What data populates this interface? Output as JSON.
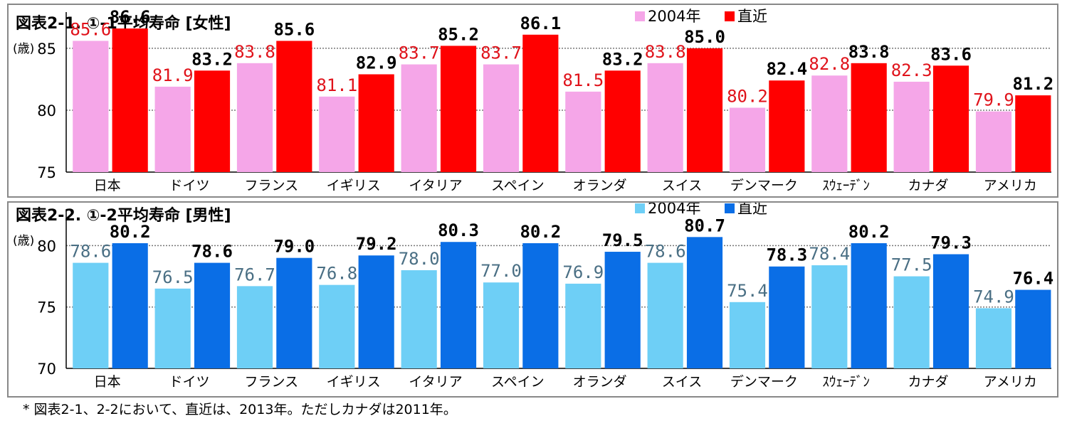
{
  "chart_data": [
    {
      "type": "bar",
      "title": "図表2-1. ①-1平均寿命 [女性]",
      "ylabel": "(歳)",
      "ylim": [
        75,
        88.5
      ],
      "yticks": [
        75,
        80,
        85
      ],
      "grid": true,
      "legend_position": "top-right",
      "categories": [
        "日本",
        "ドイツ",
        "フランス",
        "イギリス",
        "イタリア",
        "スペイン",
        "オランダ",
        "スイス",
        "デンマーク",
        "ｽｳｪｰﾃﾞﾝ",
        "カナダ",
        "アメリカ"
      ],
      "series": [
        {
          "name": "2004年",
          "color": "#f5a6e8",
          "label_color": "#e0121a",
          "values": [
            85.6,
            81.9,
            83.8,
            81.1,
            83.7,
            83.7,
            81.5,
            83.8,
            80.2,
            82.8,
            82.3,
            79.9
          ]
        },
        {
          "name": "直近",
          "color": "#ff0000",
          "label_color": "#000000",
          "values": [
            86.6,
            83.2,
            85.6,
            82.9,
            85.2,
            86.1,
            83.2,
            85.0,
            82.4,
            83.8,
            83.6,
            81.2
          ]
        }
      ]
    },
    {
      "type": "bar",
      "title": "図表2-2. ①-2平均寿命 [男性]",
      "ylabel": "(歳)",
      "ylim": [
        70,
        83.5
      ],
      "yticks": [
        70,
        75,
        80
      ],
      "grid": true,
      "legend_position": "top-right",
      "categories": [
        "日本",
        "ドイツ",
        "フランス",
        "イギリス",
        "イタリア",
        "スペイン",
        "オランダ",
        "スイス",
        "デンマーク",
        "ｽｳｪｰﾃﾞﾝ",
        "カナダ",
        "アメリカ"
      ],
      "series": [
        {
          "name": "2004年",
          "color": "#6ecff6",
          "label_color": "#4a6f84",
          "values": [
            78.6,
            76.5,
            76.7,
            76.8,
            78.0,
            77.0,
            76.9,
            78.6,
            75.4,
            78.4,
            77.5,
            74.9
          ]
        },
        {
          "name": "直近",
          "color": "#0a6ee6",
          "label_color": "#000000",
          "values": [
            80.2,
            78.6,
            79.0,
            79.2,
            80.3,
            80.2,
            79.5,
            80.7,
            78.3,
            80.2,
            79.3,
            76.4
          ]
        }
      ]
    }
  ],
  "footnote": "* 図表2-1、2-2において、直近は、2013年。ただしカナダは2011年。"
}
